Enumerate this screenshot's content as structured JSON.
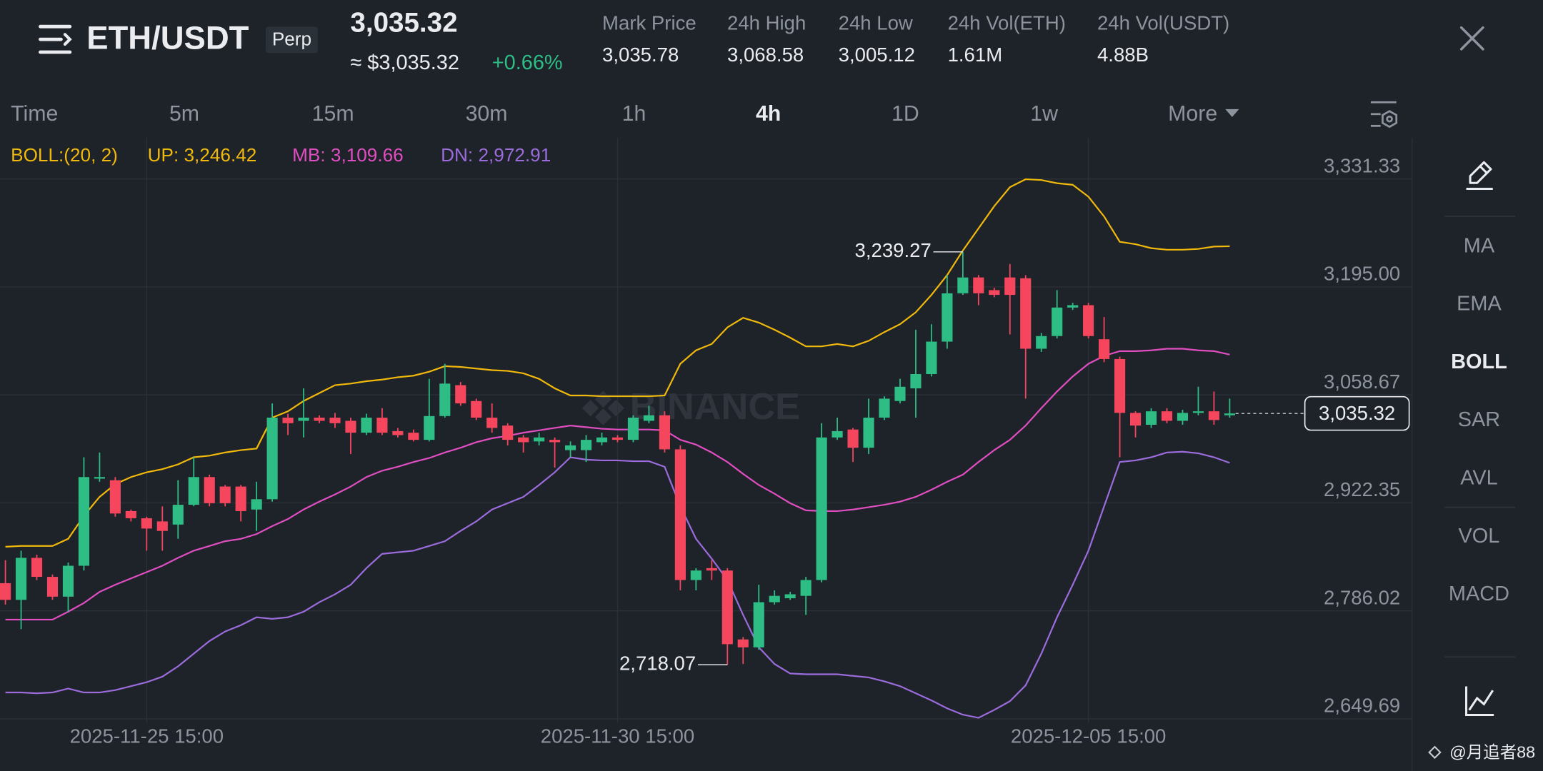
{
  "header": {
    "pair": "ETH/USDT",
    "badge": "Perp",
    "price": "3,035.32",
    "price_usd": "≈ $3,035.32",
    "change": "+0.66%",
    "stats": [
      {
        "label": "Mark Price",
        "value": "3,035.78"
      },
      {
        "label": "24h High",
        "value": "3,068.58"
      },
      {
        "label": "24h Low",
        "value": "3,005.12"
      },
      {
        "label": "24h Vol(ETH)",
        "value": "1.61M"
      },
      {
        "label": "24h Vol(USDT)",
        "value": "4.88B"
      }
    ]
  },
  "timeframes": {
    "items": [
      "Time",
      "5m",
      "15m",
      "30m",
      "1h",
      "4h",
      "1D",
      "1w",
      "More"
    ],
    "active": 5
  },
  "indicators": {
    "items": [
      "MA",
      "EMA",
      "BOLL",
      "SAR",
      "AVL",
      "VOL",
      "MACD"
    ],
    "active": 2
  },
  "footer": {
    "watermark": "@月追者88"
  },
  "chart_data": {
    "type": "candlestick",
    "watermark": "BINANCE",
    "indicator": "BOLL:(20, 2)",
    "up_color": "#2ebd85",
    "down_color": "#f6465d",
    "grid": true,
    "categories": [
      null,
      null,
      null,
      null,
      null,
      null,
      null,
      null,
      null,
      "2025-11-25 15:00",
      null,
      null,
      null,
      null,
      null,
      null,
      null,
      null,
      null,
      null,
      null,
      null,
      null,
      null,
      null,
      null,
      null,
      null,
      null,
      null,
      null,
      null,
      null,
      null,
      null,
      null,
      null,
      null,
      null,
      "2025-11-30 15:00",
      null,
      null,
      null,
      null,
      null,
      null,
      null,
      null,
      null,
      null,
      null,
      null,
      null,
      null,
      null,
      null,
      null,
      null,
      null,
      null,
      null,
      null,
      null,
      null,
      null,
      null,
      null,
      null,
      null,
      "2025-12-05 15:00",
      null,
      null,
      null,
      null,
      null,
      null,
      null,
      null,
      null
    ],
    "open": [
      2821,
      2800,
      2853,
      2829,
      2804,
      2843,
      2953,
      2951,
      2912,
      2903,
      2899,
      2895,
      2920,
      2955,
      2943,
      2943,
      2914,
      2927,
      3030,
      3026,
      3030,
      3030,
      3026,
      3011,
      3030,
      3013,
      3011,
      3002,
      3032,
      3071,
      3051,
      3030,
      3020,
      3005,
      3000,
      3002,
      2989,
      2989,
      2999,
      3005,
      3002,
      3026,
      3033,
      2990,
      2825,
      2840,
      2837,
      2750,
      2740,
      2797,
      2802,
      2805,
      2825,
      3005,
      3015,
      2992,
      3030,
      3051,
      3067,
      3085,
      3126,
      3187,
      3207,
      3191,
      3207,
      3206,
      3117,
      3133,
      3169,
      3172,
      3129,
      3104,
      3036,
      3021,
      3038,
      3026,
      3036,
      3038,
      3033
    ],
    "high": [
      2850,
      2862,
      2857,
      2832,
      2847,
      2980,
      2986,
      2955,
      2914,
      2905,
      2918,
      2951,
      2980,
      2958,
      2945,
      2945,
      2949,
      3048,
      3035,
      3067,
      3033,
      3036,
      3030,
      3035,
      3042,
      3017,
      3015,
      3079,
      3098,
      3075,
      3054,
      3048,
      3023,
      3008,
      3011,
      3005,
      3000,
      3008,
      3011,
      3008,
      3033,
      3045,
      3038,
      2995,
      2840,
      2850,
      2840,
      2753,
      2819,
      2812,
      2810,
      2829,
      3023,
      3030,
      3017,
      3054,
      3057,
      3079,
      3141,
      3148,
      3210,
      3239.27,
      3210,
      3194,
      3224,
      3210,
      3137,
      3191,
      3175,
      3175,
      3157,
      3107,
      3038,
      3042,
      3042,
      3040,
      3069,
      3063,
      3054
    ],
    "low": [
      2794,
      2763,
      2825,
      2800,
      2785,
      2837,
      2949,
      2905,
      2899,
      2862,
      2862,
      2877,
      2918,
      2918,
      2918,
      2899,
      2887,
      2924,
      3008,
      3005,
      3023,
      3017,
      2984,
      3008,
      3008,
      3005,
      3000,
      3000,
      3030,
      3045,
      3027,
      3011,
      2995,
      2986,
      2995,
      2967,
      2980,
      2974,
      2995,
      2999,
      2999,
      3023,
      2986,
      2812,
      2812,
      2825,
      2718.07,
      2719,
      2737,
      2794,
      2800,
      2781,
      2822,
      3002,
      2974,
      2984,
      3027,
      3048,
      3030,
      3082,
      3117,
      3185,
      3172,
      3182,
      3135,
      3054,
      3113,
      3130,
      3166,
      3130,
      3100,
      2980,
      3005,
      3017,
      3023,
      3021,
      3033,
      3021,
      3030
    ],
    "close": [
      2800,
      2853,
      2829,
      2804,
      2843,
      2955,
      2955,
      2909,
      2903,
      2890,
      2887,
      2920,
      2955,
      2922,
      2922,
      2912,
      2927,
      3030,
      3023,
      3030,
      3026,
      3023,
      3011,
      3030,
      3011,
      3008,
      3002,
      3032,
      3073,
      3048,
      3030,
      3017,
      3002,
      2999,
      3005,
      2999,
      2995,
      3002,
      3005,
      3002,
      3030,
      3033,
      2990,
      2825,
      2837,
      2837,
      2744,
      2740,
      2797,
      2805,
      2807,
      2825,
      3005,
      3013,
      2992,
      3030,
      3054,
      3069,
      3085,
      3126,
      3187,
      3207,
      3187,
      3185,
      3185,
      3117,
      3133,
      3169,
      3172,
      3133,
      3104,
      3036,
      3020,
      3038,
      3026,
      3036,
      3038,
      3027,
      3035.32
    ],
    "series": [
      {
        "name": "UP: 3,246.42",
        "color": "#f0b90b",
        "values": [
          2867,
          2868,
          2868,
          2868,
          2877,
          2906,
          2930,
          2946,
          2955,
          2961,
          2965,
          2971,
          2980,
          2982,
          2986,
          2989,
          2991,
          3030,
          3038,
          3051,
          3061,
          3071,
          3073,
          3076,
          3078,
          3081,
          3083,
          3088,
          3095,
          3094,
          3092,
          3090,
          3089,
          3086,
          3079,
          3067,
          3058,
          3058,
          3057,
          3057,
          3057,
          3057,
          3058,
          3098,
          3115,
          3123,
          3144,
          3156,
          3150,
          3141,
          3131,
          3120,
          3120,
          3123,
          3120,
          3127,
          3138,
          3148,
          3163,
          3185,
          3210,
          3241,
          3269,
          3297,
          3321,
          3331,
          3330,
          3326,
          3324,
          3309,
          3284,
          3252,
          3249,
          3244,
          3242,
          3242,
          3243,
          3246,
          3246.42
        ]
      },
      {
        "name": "MB: 3,109.66",
        "color": "#e14ec1",
        "values": [
          2775,
          2775,
          2775,
          2775,
          2785,
          2796,
          2810,
          2819,
          2827,
          2835,
          2843,
          2853,
          2862,
          2868,
          2874,
          2877,
          2883,
          2893,
          2902,
          2914,
          2924,
          2933,
          2943,
          2955,
          2963,
          2968,
          2974,
          2979,
          2986,
          2992,
          2999,
          3004,
          3007,
          3011,
          3014,
          3017,
          3020,
          3018,
          3016,
          3015,
          3015,
          3015,
          3014,
          3002,
          2996,
          2986,
          2974,
          2959,
          2945,
          2934,
          2922,
          2913,
          2912,
          2912,
          2914,
          2917,
          2920,
          2924,
          2930,
          2939,
          2949,
          2958,
          2974,
          2989,
          3002,
          3020,
          3042,
          3063,
          3082,
          3098,
          3108,
          3114,
          3114,
          3115,
          3117,
          3117,
          3115,
          3114,
          3109.66
        ]
      },
      {
        "name": "DN: 2,972.91",
        "color": "#9b6cdc",
        "values": [
          2683,
          2683,
          2682,
          2683,
          2688,
          2683,
          2683,
          2686,
          2691,
          2696,
          2703,
          2716,
          2732,
          2748,
          2760,
          2768,
          2778,
          2776,
          2778,
          2785,
          2797,
          2807,
          2819,
          2840,
          2858,
          2860,
          2862,
          2868,
          2874,
          2887,
          2899,
          2914,
          2922,
          2930,
          2945,
          2961,
          2980,
          2977,
          2976,
          2976,
          2975,
          2975,
          2968,
          2918,
          2877,
          2852,
          2825,
          2781,
          2740,
          2719,
          2707,
          2706,
          2706,
          2706,
          2704,
          2702,
          2697,
          2691,
          2682,
          2673,
          2663,
          2655,
          2651,
          2661,
          2672,
          2692,
          2732,
          2778,
          2819,
          2862,
          2918,
          2974,
          2976,
          2980,
          2986,
          2987,
          2985,
          2980,
          2972.91
        ]
      }
    ],
    "ylim": [
      2644.72,
      3383.48
    ],
    "yticks": [
      {
        "value": 3331.33,
        "label": "3,331.33"
      },
      {
        "value": 3195.0,
        "label": "3,195.00"
      },
      {
        "value": 3058.67,
        "label": "3,058.67"
      },
      {
        "value": 2922.35,
        "label": "2,922.35"
      },
      {
        "value": 2786.02,
        "label": "2,786.02"
      },
      {
        "value": 2649.69,
        "label": "2,649.69"
      }
    ],
    "last_price": {
      "value": 3035.32,
      "label": "3,035.32"
    },
    "max_label": {
      "value": 3239.27,
      "label": "3,239.27"
    },
    "min_label": {
      "value": 2718.07,
      "label": "2,718.07"
    }
  }
}
